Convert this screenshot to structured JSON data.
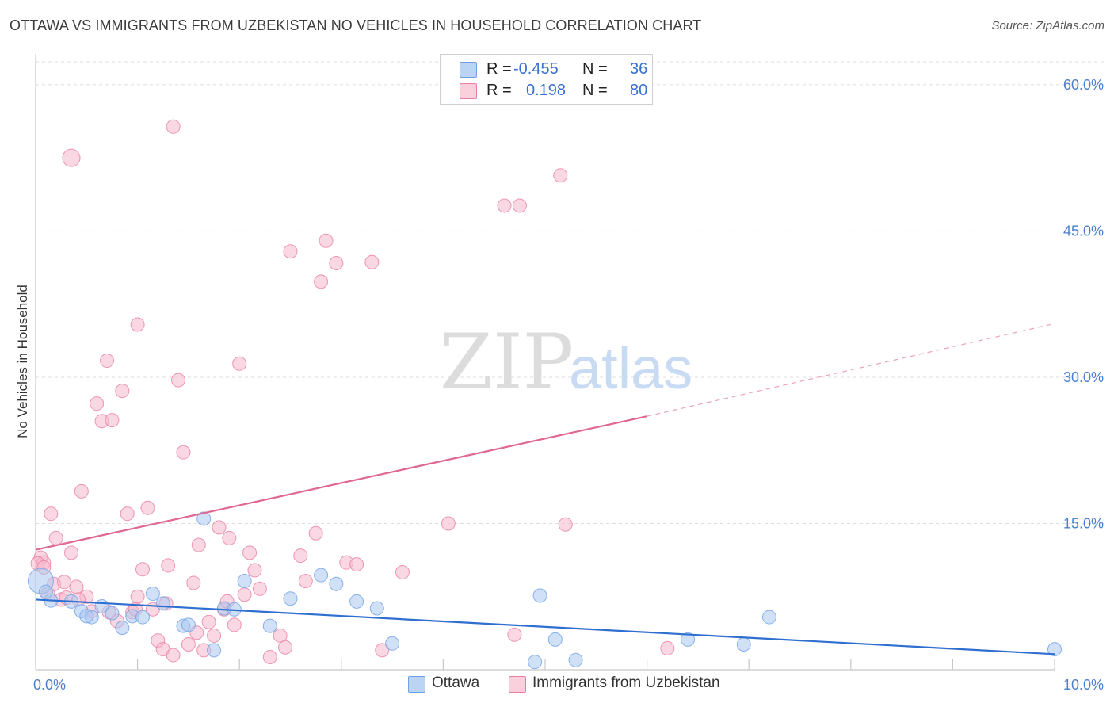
{
  "title": "OTTAWA VS IMMIGRANTS FROM UZBEKISTAN NO VEHICLES IN HOUSEHOLD CORRELATION CHART",
  "source": "Source: ZipAtlas.com",
  "watermark": {
    "zip": "ZIP",
    "atlas": "atlas"
  },
  "legend": {
    "rows": [
      {
        "r_label": "R =",
        "r_value": "-0.455",
        "n_label": "N =",
        "n_value": "36",
        "color": "#a9c8f0"
      },
      {
        "r_label": "R =",
        "r_value": "0.198",
        "n_label": "N =",
        "n_value": "80",
        "color": "#f6b8cc"
      }
    ]
  },
  "bottom_legend": [
    {
      "label": "Ottawa",
      "color": "#a9c8f0"
    },
    {
      "label": "Immigrants from Uzbekistan",
      "color": "#f6b8cc"
    }
  ],
  "chart_data": {
    "type": "scatter",
    "title": "OTTAWA VS IMMIGRANTS FROM UZBEKISTAN NO VEHICLES IN HOUSEHOLD CORRELATION CHART",
    "xlabel": "",
    "ylabel": "No Vehicles in Household",
    "xlim": [
      0,
      10
    ],
    "ylim": [
      0,
      63
    ],
    "x_tick_labels": [
      "0.0%",
      "10.0%"
    ],
    "y_ticks": [
      15,
      30,
      45,
      60
    ],
    "y_tick_labels": [
      "15.0%",
      "30.0%",
      "45.0%",
      "60.0%"
    ],
    "grid": true,
    "series": [
      {
        "name": "Ottawa",
        "color": "#6fa0e6",
        "fill": "#a9c8f0",
        "points": [
          [
            0.05,
            9.1
          ],
          [
            0.15,
            7.1
          ],
          [
            0.35,
            7.0
          ],
          [
            0.45,
            6.0
          ],
          [
            0.55,
            5.4
          ],
          [
            0.65,
            6.5
          ],
          [
            0.75,
            5.8
          ],
          [
            0.85,
            4.3
          ],
          [
            0.95,
            5.5
          ],
          [
            1.05,
            5.4
          ],
          [
            1.15,
            7.8
          ],
          [
            1.25,
            6.8
          ],
          [
            1.45,
            4.5
          ],
          [
            1.65,
            15.5
          ],
          [
            1.75,
            2.0
          ],
          [
            1.85,
            6.3
          ],
          [
            1.95,
            6.2
          ],
          [
            2.05,
            9.1
          ],
          [
            2.3,
            4.5
          ],
          [
            2.5,
            7.3
          ],
          [
            2.8,
            9.7
          ],
          [
            2.95,
            8.8
          ],
          [
            3.15,
            7.0
          ],
          [
            3.35,
            6.3
          ],
          [
            3.5,
            2.7
          ],
          [
            4.9,
            0.8
          ],
          [
            4.95,
            7.6
          ],
          [
            5.1,
            3.1
          ],
          [
            5.3,
            1.0
          ],
          [
            6.4,
            3.1
          ],
          [
            6.95,
            2.6
          ],
          [
            7.2,
            5.4
          ],
          [
            10.0,
            2.1
          ],
          [
            0.1,
            8.0
          ],
          [
            0.5,
            5.5
          ],
          [
            1.5,
            4.6
          ]
        ],
        "trend": {
          "x": [
            0,
            10
          ],
          "y": [
            7.2,
            1.6
          ]
        }
      },
      {
        "name": "Immigrants from Uzbekistan",
        "color": "#e87fa0",
        "fill": "#f6b8cc",
        "points": [
          [
            0.05,
            11.5
          ],
          [
            0.08,
            11.0
          ],
          [
            0.12,
            7.8
          ],
          [
            0.15,
            16.0
          ],
          [
            0.2,
            13.5
          ],
          [
            0.25,
            7.2
          ],
          [
            0.3,
            7.4
          ],
          [
            0.35,
            12.0
          ],
          [
            0.4,
            8.5
          ],
          [
            0.45,
            18.3
          ],
          [
            0.5,
            7.5
          ],
          [
            0.55,
            6.0
          ],
          [
            0.6,
            27.3
          ],
          [
            0.65,
            25.5
          ],
          [
            0.7,
            31.7
          ],
          [
            0.75,
            25.6
          ],
          [
            0.8,
            5.0
          ],
          [
            0.85,
            28.6
          ],
          [
            0.9,
            16.0
          ],
          [
            0.95,
            5.9
          ],
          [
            1.0,
            7.5
          ],
          [
            1.05,
            10.3
          ],
          [
            1.1,
            16.6
          ],
          [
            1.15,
            6.2
          ],
          [
            1.2,
            3.0
          ],
          [
            1.25,
            2.1
          ],
          [
            1.3,
            10.7
          ],
          [
            1.35,
            1.5
          ],
          [
            1.4,
            29.7
          ],
          [
            1.45,
            22.3
          ],
          [
            1.5,
            2.6
          ],
          [
            1.55,
            8.9
          ],
          [
            1.6,
            12.8
          ],
          [
            1.65,
            2.0
          ],
          [
            1.7,
            4.9
          ],
          [
            1.75,
            3.5
          ],
          [
            1.8,
            14.6
          ],
          [
            1.85,
            6.2
          ],
          [
            1.9,
            13.5
          ],
          [
            1.95,
            4.6
          ],
          [
            2.0,
            31.4
          ],
          [
            2.05,
            7.7
          ],
          [
            2.1,
            12.0
          ],
          [
            2.15,
            10.2
          ],
          [
            2.2,
            8.3
          ],
          [
            2.3,
            1.3
          ],
          [
            2.4,
            3.5
          ],
          [
            2.45,
            2.3
          ],
          [
            2.5,
            42.9
          ],
          [
            2.6,
            11.7
          ],
          [
            2.65,
            9.1
          ],
          [
            2.75,
            14.0
          ],
          [
            2.8,
            39.8
          ],
          [
            2.85,
            44.0
          ],
          [
            2.95,
            41.7
          ],
          [
            3.05,
            11.0
          ],
          [
            3.15,
            10.8
          ],
          [
            3.3,
            41.8
          ],
          [
            3.4,
            2.0
          ],
          [
            3.6,
            10.0
          ],
          [
            4.05,
            15.0
          ],
          [
            4.6,
            47.6
          ],
          [
            4.7,
            3.6
          ],
          [
            4.75,
            47.6
          ],
          [
            5.15,
            50.7
          ],
          [
            5.2,
            14.9
          ],
          [
            6.2,
            2.2
          ],
          [
            0.35,
            52.5
          ],
          [
            1.35,
            55.7
          ],
          [
            1.0,
            35.4
          ],
          [
            0.02,
            10.9
          ],
          [
            0.18,
            8.8
          ],
          [
            0.42,
            7.2
          ],
          [
            0.72,
            5.9
          ],
          [
            0.98,
            6.2
          ],
          [
            1.28,
            6.8
          ],
          [
            1.58,
            3.8
          ],
          [
            1.88,
            7.0
          ],
          [
            0.08,
            10.5
          ],
          [
            0.28,
            9.0
          ]
        ],
        "trend": {
          "x": [
            0,
            6.0
          ],
          "y": [
            12.3,
            26.0
          ]
        },
        "trend_extension": {
          "x": [
            6.0,
            10.0
          ],
          "y": [
            26.0,
            35.5
          ]
        }
      }
    ]
  }
}
